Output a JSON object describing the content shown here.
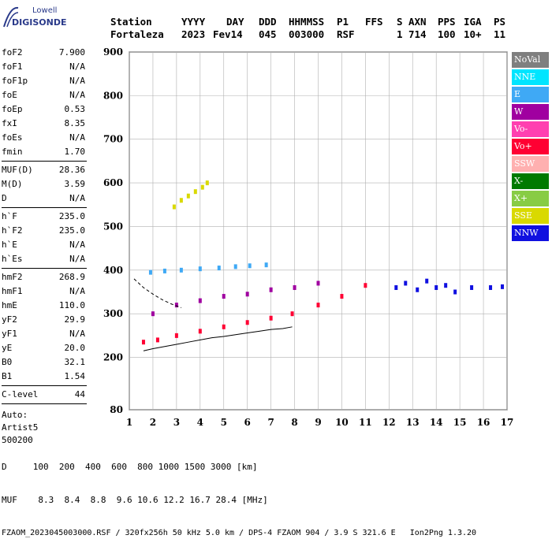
{
  "logo": {
    "line1": "Lowell",
    "line2": "DIGISONDE"
  },
  "header": {
    "labels": [
      "Station",
      "YYYY",
      "DAY",
      "DDD",
      "HHMMSS",
      "P1",
      "FFS",
      "S",
      "AXN",
      "PPS",
      "IGA",
      "PS"
    ],
    "values": [
      "Fortaleza",
      "2023",
      "Fev14",
      "045",
      "003000",
      "RSF",
      "1",
      "714",
      "100",
      "10+",
      "11"
    ]
  },
  "params": {
    "group1": [
      {
        "k": "foF2",
        "v": "7.900"
      },
      {
        "k": "foF1",
        "v": "N/A"
      },
      {
        "k": "foF1p",
        "v": "N/A"
      },
      {
        "k": "foE",
        "v": "N/A"
      },
      {
        "k": "foEp",
        "v": "0.53"
      },
      {
        "k": "fxI",
        "v": "8.35"
      },
      {
        "k": "foEs",
        "v": "N/A"
      },
      {
        "k": "fmin",
        "v": "1.70"
      }
    ],
    "group2": [
      {
        "k": "MUF(D)",
        "v": "28.36"
      },
      {
        "k": "M(D)",
        "v": "3.59"
      },
      {
        "k": "D",
        "v": "N/A"
      }
    ],
    "group3": [
      {
        "k": "h`F",
        "v": "235.0"
      },
      {
        "k": "h`F2",
        "v": "235.0"
      },
      {
        "k": "h`E",
        "v": "N/A"
      },
      {
        "k": "h`Es",
        "v": "N/A"
      }
    ],
    "group4": [
      {
        "k": "hmF2",
        "v": "268.9"
      },
      {
        "k": "hmF1",
        "v": "N/A"
      },
      {
        "k": "hmE",
        "v": "110.0"
      },
      {
        "k": "yF2",
        "v": "29.9"
      },
      {
        "k": "yF1",
        "v": "N/A"
      },
      {
        "k": "yE",
        "v": "20.0"
      },
      {
        "k": "B0",
        "v": "32.1"
      },
      {
        "k": "B1",
        "v": "1.54"
      }
    ],
    "group5": [
      {
        "k": "C-level",
        "v": "44"
      }
    ],
    "auto": [
      "Auto:",
      "Artist5",
      "500200"
    ]
  },
  "legend": [
    {
      "label": "NoVal",
      "color": "#7f7f7f"
    },
    {
      "label": "NNE",
      "color": "#00e5ff"
    },
    {
      "label": "E",
      "color": "#3fa9f5"
    },
    {
      "label": "W",
      "color": "#a000a0"
    },
    {
      "label": "Vo-",
      "color": "#ff40b0"
    },
    {
      "label": "Vo+",
      "color": "#ff0033"
    },
    {
      "label": "SSW",
      "color": "#ffb0b0"
    },
    {
      "label": "X-",
      "color": "#007a00"
    },
    {
      "label": "X+",
      "color": "#88cc44"
    },
    {
      "label": "SSE",
      "color": "#d9d900"
    },
    {
      "label": "NNW",
      "color": "#1010e0"
    }
  ],
  "footer": {
    "line1": "D     100  200  400  600  800 1000 1500 3000 [km]",
    "line2": "MUF    8.3  8.4  8.8  9.6 10.6 12.2 16.7 28.4 [MHz]",
    "line3": "FZAOM_2023045003000.RSF / 320fx256h 50 kHz 5.0 km / DPS-4 FZAOM 904 / 3.9 S 321.6 E   Ion2Png 1.3.20"
  },
  "chart_data": {
    "type": "scatter",
    "title": "",
    "xlabel": "",
    "ylabel": "",
    "xlim": [
      1,
      17
    ],
    "ylim": [
      80,
      900
    ],
    "xticks": [
      1,
      2,
      3,
      4,
      5,
      6,
      7,
      8,
      9,
      10,
      11,
      12,
      13,
      14,
      15,
      16,
      17
    ],
    "yticks": [
      80,
      200,
      300,
      400,
      500,
      600,
      700,
      800,
      900
    ],
    "grid": true,
    "legend_position": "right",
    "series": [
      {
        "name": "E",
        "color": "#3fa9f5",
        "x": [
          1.9,
          2.5,
          3.2,
          4.0,
          4.8,
          5.5,
          6.1,
          6.8
        ],
        "y": [
          395,
          398,
          400,
          403,
          405,
          408,
          410,
          412
        ]
      },
      {
        "name": "SSE",
        "color": "#d9d900",
        "x": [
          2.9,
          3.2,
          3.5,
          3.8,
          4.1,
          4.3
        ],
        "y": [
          545,
          560,
          570,
          580,
          590,
          600
        ]
      },
      {
        "name": "Vo+",
        "color": "#ff0033",
        "x": [
          1.6,
          2.2,
          3.0,
          4.0,
          5.0,
          6.0,
          7.0,
          7.9,
          9.0,
          10.0,
          11.0
        ],
        "y": [
          235,
          240,
          250,
          260,
          270,
          280,
          290,
          300,
          320,
          340,
          365
        ]
      },
      {
        "name": "NNW",
        "color": "#1010e0",
        "x": [
          12.3,
          12.7,
          13.2,
          13.6,
          14.0,
          14.4,
          14.8,
          15.5,
          16.3,
          16.8
        ],
        "y": [
          360,
          370,
          355,
          375,
          360,
          365,
          350,
          360,
          360,
          362
        ]
      },
      {
        "name": "W",
        "color": "#a000a0",
        "x": [
          2.0,
          3.0,
          4.0,
          5.0,
          6.0,
          7.0,
          8.0,
          9.0
        ],
        "y": [
          300,
          320,
          330,
          340,
          345,
          355,
          360,
          370
        ]
      }
    ],
    "profile_line": {
      "x": [
        1.6,
        2.0,
        2.5,
        3.0,
        3.5,
        4.0,
        4.5,
        5.0,
        5.5,
        6.0,
        6.5,
        7.0,
        7.5,
        7.9
      ],
      "y": [
        215,
        220,
        225,
        230,
        235,
        240,
        245,
        248,
        252,
        256,
        260,
        264,
        266,
        270
      ]
    },
    "dashed_line": {
      "x": [
        1.2,
        1.6,
        2.0,
        2.4,
        2.8,
        3.2
      ],
      "y": [
        380,
        360,
        345,
        332,
        322,
        314
      ]
    }
  }
}
